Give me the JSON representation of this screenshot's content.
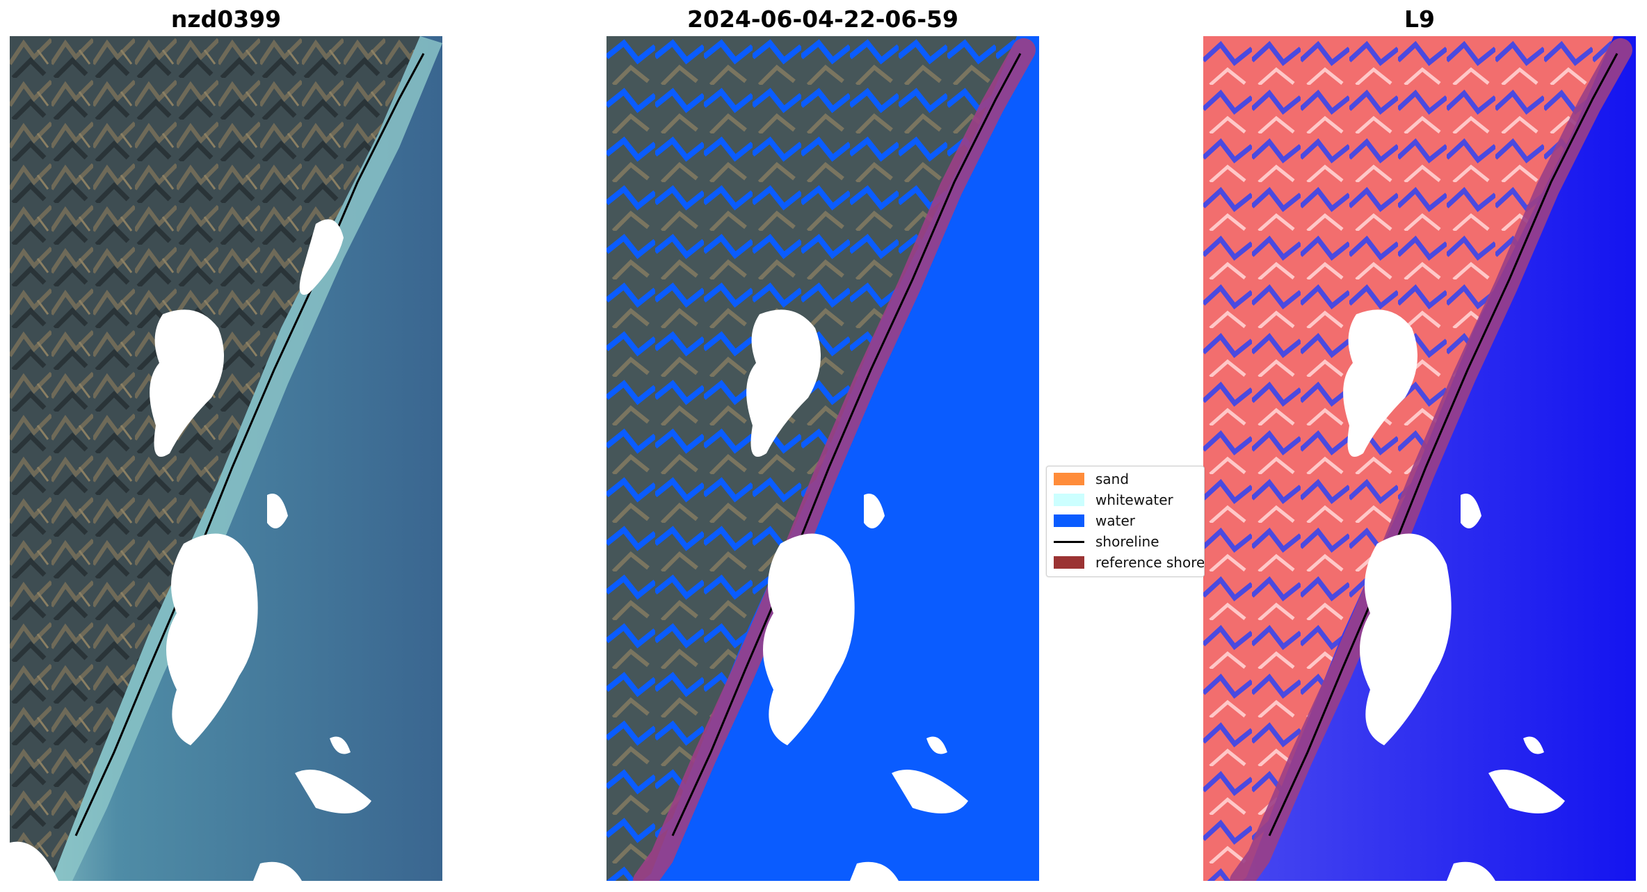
{
  "panels": [
    {
      "title": "nzd0399"
    },
    {
      "title": "2024-06-04-22-06-59"
    },
    {
      "title": "L9"
    }
  ],
  "legend": {
    "items": [
      {
        "label": "sand",
        "color": "#ff8c3a"
      },
      {
        "label": "whitewater",
        "color": "#ccffff"
      },
      {
        "label": "water",
        "color": "#0a5cff"
      },
      {
        "label": "shoreline",
        "color": "#000000"
      },
      {
        "label": "reference shoreline",
        "color": "#9b3333"
      }
    ]
  },
  "colors": {
    "land_dark": "#3b4a4f",
    "sea_rgb": "#3f6f94",
    "nearshore": "#7fb1bf",
    "water_class": "#0a5cff",
    "land_index": "#f06a6a",
    "sea_index": "#1f1fe6",
    "ref_buffer": "#9b3f86",
    "cloud": "#ffffff"
  }
}
